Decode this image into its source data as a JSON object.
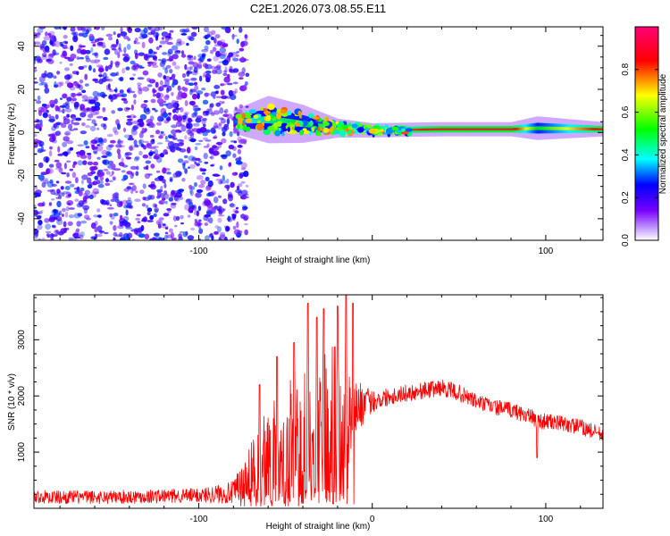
{
  "title": "C2E1.2026.073.08.55.E11",
  "chart_data": [
    {
      "type": "heatmap",
      "panel": "spectrogram",
      "xlabel": "Height of straight line (km)",
      "ylabel": "Frequency (Hz)",
      "xlim": [
        -195,
        133
      ],
      "ylim": [
        -50,
        49
      ],
      "xticks": [
        -100,
        0,
        100
      ],
      "xtick_labels": [
        "-100",
        "",
        "100"
      ],
      "yticks": [
        -40,
        -20,
        0,
        20,
        40
      ],
      "ytick_labels": [
        "-40",
        "-20",
        "0",
        "20",
        "40"
      ],
      "noise_region": {
        "x_range": [
          -195,
          -78
        ],
        "freq_range": [
          -50,
          49
        ],
        "amplitude": [
          0.1,
          0.3
        ]
      },
      "signal_band": [
        {
          "x": -80,
          "freq": 5,
          "halfwidth": 2.5,
          "amplitude": 0.3
        },
        {
          "x": -60,
          "freq": 6,
          "halfwidth": 5,
          "amplitude": 0.45
        },
        {
          "x": -40,
          "freq": 4,
          "halfwidth": 4,
          "amplitude": 0.5
        },
        {
          "x": -20,
          "freq": 2,
          "halfwidth": 2,
          "amplitude": 0.6
        },
        {
          "x": 0,
          "freq": 1,
          "halfwidth": 1.5,
          "amplitude": 0.7
        },
        {
          "x": 40,
          "freq": 1.5,
          "halfwidth": 1.5,
          "amplitude": 0.9
        },
        {
          "x": 80,
          "freq": 1.5,
          "halfwidth": 1.5,
          "amplitude": 0.92
        },
        {
          "x": 95,
          "freq": 2,
          "halfwidth": 2.5,
          "amplitude": 0.5
        },
        {
          "x": 133,
          "freq": 1.5,
          "halfwidth": 1.5,
          "amplitude": 0.9
        }
      ]
    },
    {
      "type": "colorbar",
      "label": "Normalized spectral amplitude",
      "ticks": [
        0.0,
        0.2,
        0.4,
        0.6,
        0.8
      ],
      "tick_labels": [
        "0.0",
        "0.2",
        "0.4",
        "0.6",
        "0.8"
      ],
      "range": [
        0,
        1
      ],
      "colormap": [
        "#ffffff",
        "#7700ff",
        "#0000ff",
        "#00ffff",
        "#00ff00",
        "#ffff00",
        "#ff0000",
        "#ff0066"
      ]
    },
    {
      "type": "line",
      "panel": "snr",
      "series_name": "SNR",
      "color": "#ff0000",
      "xlabel": "Height of straight line (km)",
      "ylabel": "SNR (10 * v/v)",
      "xlim": [
        -195,
        133
      ],
      "ylim": [
        0,
        3800
      ],
      "xticks": [
        -100,
        0,
        100
      ],
      "xtick_labels": [
        "-100",
        "0",
        "100"
      ],
      "yticks": [
        1000,
        2000,
        3000
      ],
      "ytick_labels": [
        "1000",
        "2000",
        "3000"
      ],
      "envelope": {
        "x": [
          -195,
          -150,
          -100,
          -80,
          -70,
          -60,
          -50,
          -40,
          -30,
          -20,
          -15,
          -10,
          0,
          10,
          20,
          30,
          40,
          50,
          60,
          70,
          80,
          90,
          95,
          100,
          110,
          120,
          133
        ],
        "mean": [
          200,
          200,
          230,
          280,
          500,
          900,
          1100,
          1300,
          1500,
          1600,
          1700,
          1800,
          1900,
          2000,
          2050,
          2100,
          2150,
          2050,
          1900,
          1800,
          1750,
          1650,
          1550,
          1550,
          1500,
          1450,
          1300
        ],
        "spread": [
          120,
          120,
          130,
          200,
          700,
          900,
          1100,
          1300,
          1400,
          1300,
          1100,
          500,
          200,
          160,
          150,
          150,
          150,
          150,
          140,
          140,
          140,
          140,
          160,
          140,
          140,
          140,
          140
        ],
        "peaks": [
          [
            -65,
            2200
          ],
          [
            -55,
            2700
          ],
          [
            -45,
            2950
          ],
          [
            -37,
            3650
          ],
          [
            -32,
            3400
          ],
          [
            -28,
            3550
          ],
          [
            -20,
            3600
          ],
          [
            -15,
            3800
          ],
          [
            -11,
            3650
          ],
          [
            95,
            900
          ]
        ]
      }
    }
  ]
}
